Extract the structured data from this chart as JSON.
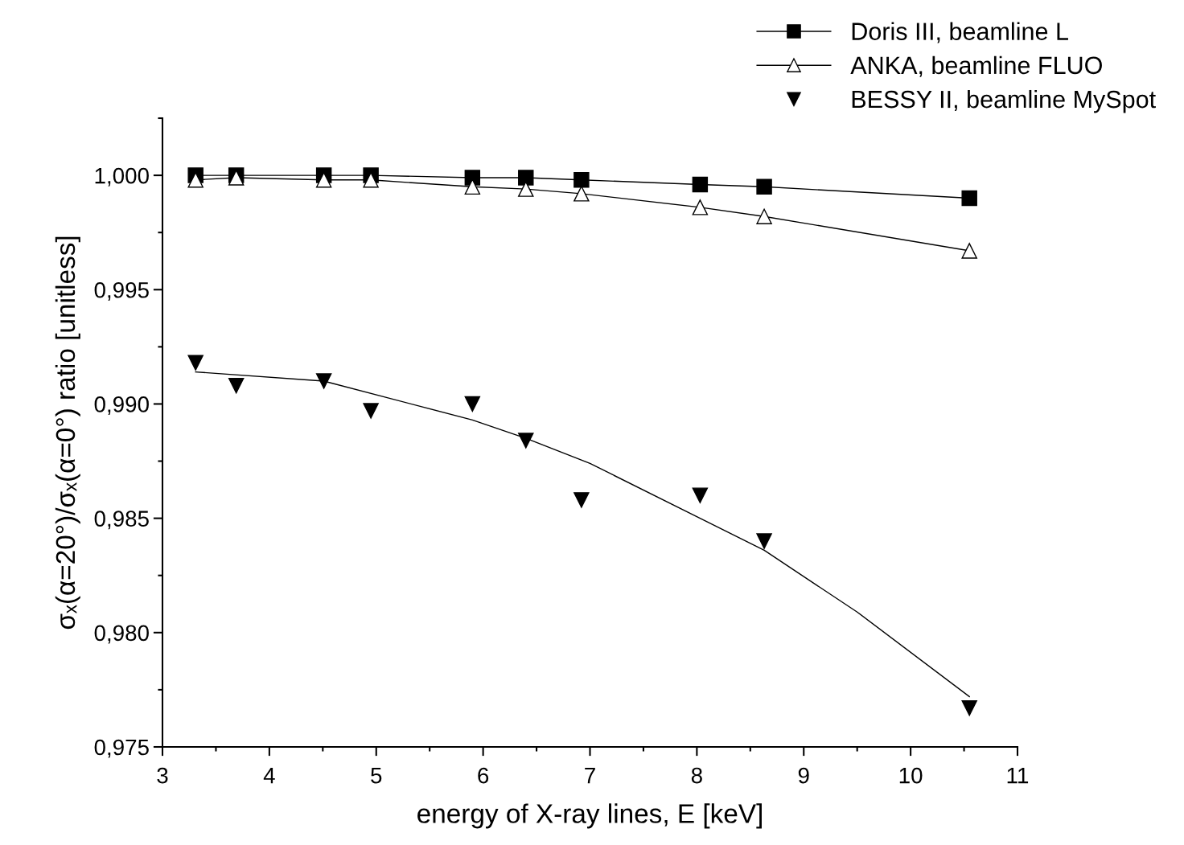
{
  "chart_data": {
    "type": "line",
    "xlabel": "energy of X-ray lines, E [keV]",
    "ylabel": "σₓ(α=20°)/σₓ(α=0°) ratio [unitless]",
    "xlim": [
      3,
      11
    ],
    "xticks": [
      3,
      4,
      5,
      6,
      7,
      8,
      9,
      10,
      11
    ],
    "ylim": [
      0.975,
      1.0025
    ],
    "yticks": [
      {
        "value": 0.975,
        "label": "0,975"
      },
      {
        "value": 0.98,
        "label": "0,980"
      },
      {
        "value": 0.985,
        "label": "0,985"
      },
      {
        "value": 0.99,
        "label": "0,990"
      },
      {
        "value": 0.995,
        "label": "0,995"
      },
      {
        "value": 1.0,
        "label": "1,000"
      }
    ],
    "grid": false,
    "legend": "top right",
    "series": [
      {
        "name": "Doris III, beamline L",
        "color": "#000000",
        "marker": "square",
        "line_style": "solid",
        "x": [
          3.31,
          3.69,
          4.51,
          4.95,
          5.9,
          6.4,
          6.92,
          8.03,
          8.63,
          10.55
        ],
        "values": [
          1.0,
          1.0,
          1.0,
          1.0,
          0.9999,
          0.9999,
          0.9998,
          0.9996,
          0.9995,
          0.999
        ]
      },
      {
        "name": "ANKA, beamline FLUO",
        "color": "#000000",
        "marker": "triangle",
        "line_style": "solid",
        "x": [
          3.31,
          3.69,
          4.51,
          4.95,
          5.9,
          6.4,
          6.92,
          8.03,
          8.63,
          10.55
        ],
        "values": [
          0.9998,
          0.9999,
          0.9998,
          0.9998,
          0.9995,
          0.9994,
          0.9992,
          0.9986,
          0.9982,
          0.9967
        ]
      },
      {
        "name": "BESSY II, beamline MySpot",
        "type": "scatter",
        "color": "#000000",
        "marker": "triangle_down",
        "x": [
          3.31,
          3.69,
          4.51,
          4.95,
          5.9,
          6.4,
          6.92,
          8.03,
          8.63,
          10.55
        ],
        "values": [
          0.9918,
          0.9908,
          0.991,
          0.9897,
          0.99,
          0.9884,
          0.9858,
          0.986,
          0.984,
          0.9767
        ]
      },
      {
        "color": "#000000",
        "marker": "none",
        "line_style": "solid",
        "x": [
          3.31,
          4.51,
          5.9,
          6.4,
          7.0,
          8.03,
          8.63,
          9.5,
          10.55
        ],
        "values": [
          0.9914,
          0.991,
          0.9893,
          0.9885,
          0.9874,
          0.985,
          0.9836,
          0.9809,
          0.9772
        ]
      }
    ]
  }
}
